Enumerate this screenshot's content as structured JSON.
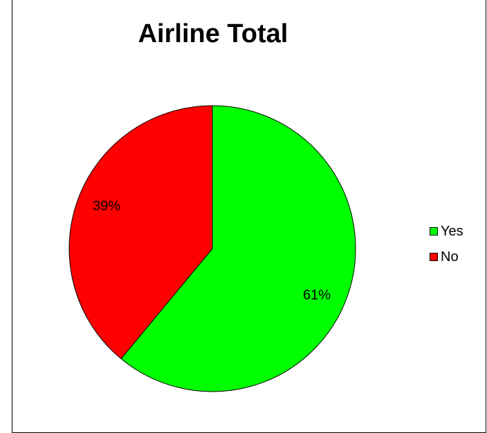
{
  "chart_data": {
    "type": "pie",
    "title": "Airline Total",
    "categories": [
      "Yes",
      "No"
    ],
    "values": [
      61,
      39
    ],
    "labels": [
      "61%",
      "39%"
    ],
    "colors": [
      "#00ff00",
      "#ff0000"
    ],
    "legend_position": "right"
  }
}
